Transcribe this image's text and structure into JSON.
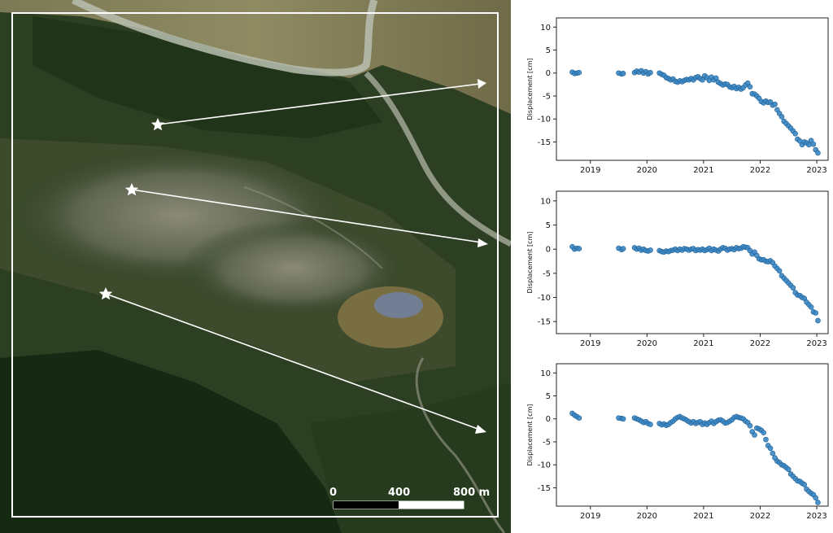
{
  "scale_bar": {
    "labels": [
      "0",
      "400",
      "800 m"
    ]
  },
  "colors": {
    "points": "#3b87c4",
    "point_edge": "#1f5f94",
    "frame": "#ffffff",
    "arrows": "#ffffff"
  },
  "chart_data": [
    {
      "type": "scatter",
      "ylabel": "Displacement [cm]",
      "ylim": [
        -19,
        12
      ],
      "yticks": [
        10,
        5,
        0,
        -5,
        -10,
        -15
      ],
      "xlim": [
        2018.4,
        2023.2
      ],
      "xticks": [
        "2019",
        "2020",
        "2021",
        "2022",
        "2023"
      ],
      "grid": false,
      "series": [
        {
          "x": [
            2018.68,
            2018.72,
            2018.76,
            2018.8,
            2019.5,
            2019.55,
            2019.58,
            2019.78,
            2019.82,
            2019.86,
            2019.9,
            2019.94,
            2019.98,
            2020.02,
            2020.06,
            2020.22,
            2020.26,
            2020.3,
            2020.34,
            2020.38,
            2020.42,
            2020.46,
            2020.5,
            2020.54,
            2020.58,
            2020.62,
            2020.66,
            2020.7,
            2020.74,
            2020.78,
            2020.82,
            2020.86,
            2020.9,
            2020.94,
            2020.98,
            2021.02,
            2021.06,
            2021.1,
            2021.14,
            2021.18,
            2021.22,
            2021.26,
            2021.3,
            2021.34,
            2021.38,
            2021.42,
            2021.46,
            2021.5,
            2021.54,
            2021.58,
            2021.62,
            2021.66,
            2021.7,
            2021.74,
            2021.78,
            2021.82,
            2021.86,
            2021.9,
            2021.94,
            2021.98,
            2022.02,
            2022.06,
            2022.1,
            2022.14,
            2022.18,
            2022.22,
            2022.26,
            2022.3,
            2022.34,
            2022.38,
            2022.42,
            2022.46,
            2022.5,
            2022.54,
            2022.58,
            2022.62,
            2022.66,
            2022.7,
            2022.74,
            2022.78,
            2022.82,
            2022.86,
            2022.9,
            2022.94,
            2022.98,
            2023.02
          ],
          "y": [
            0.2,
            -0.1,
            0,
            0.1,
            0,
            -0.2,
            -0.1,
            0.1,
            0.4,
            0.2,
            0.5,
            0,
            0.3,
            -0.2,
            0.1,
            0,
            -0.3,
            -0.5,
            -1,
            -1.2,
            -1.5,
            -1.3,
            -1.8,
            -2,
            -1.7,
            -1.9,
            -1.6,
            -1.4,
            -1.5,
            -1.2,
            -1.5,
            -1,
            -0.8,
            -1.2,
            -1.5,
            -0.6,
            -1,
            -1.6,
            -0.9,
            -1.5,
            -1.1,
            -2,
            -2.3,
            -2.6,
            -2.4,
            -2.5,
            -3,
            -3.2,
            -2.9,
            -3.4,
            -3.1,
            -3.5,
            -3.2,
            -2.6,
            -2.2,
            -3,
            -4.5,
            -4.6,
            -5,
            -5.5,
            -6.2,
            -6.5,
            -6.1,
            -6.4,
            -6.3,
            -7,
            -6.8,
            -8,
            -8.8,
            -9.5,
            -10.5,
            -11,
            -11.5,
            -12,
            -12.6,
            -13.2,
            -14.4,
            -14.8,
            -15.6,
            -15,
            -15.2,
            -15.6,
            -14.7,
            -15.5,
            -16.7,
            -17.4
          ]
        }
      ]
    },
    {
      "type": "scatter",
      "ylabel": "Displacement [cm]",
      "ylim": [
        -17.5,
        12
      ],
      "yticks": [
        10,
        5,
        0,
        -5,
        -10,
        -15
      ],
      "xlim": [
        2018.4,
        2023.2
      ],
      "xticks": [
        "2019",
        "2020",
        "2021",
        "2022",
        "2023"
      ],
      "grid": false,
      "series": [
        {
          "x": [
            2018.68,
            2018.72,
            2018.76,
            2018.8,
            2019.5,
            2019.55,
            2019.58,
            2019.78,
            2019.82,
            2019.86,
            2019.9,
            2019.94,
            2019.98,
            2020.02,
            2020.06,
            2020.22,
            2020.26,
            2020.3,
            2020.34,
            2020.38,
            2020.42,
            2020.46,
            2020.5,
            2020.54,
            2020.58,
            2020.62,
            2020.66,
            2020.7,
            2020.74,
            2020.78,
            2020.82,
            2020.86,
            2020.9,
            2020.94,
            2020.98,
            2021.02,
            2021.06,
            2021.1,
            2021.14,
            2021.18,
            2021.22,
            2021.26,
            2021.3,
            2021.34,
            2021.38,
            2021.42,
            2021.46,
            2021.5,
            2021.54,
            2021.58,
            2021.62,
            2021.66,
            2021.7,
            2021.74,
            2021.78,
            2021.82,
            2021.86,
            2021.9,
            2021.94,
            2021.98,
            2022.02,
            2022.06,
            2022.1,
            2022.14,
            2022.18,
            2022.22,
            2022.26,
            2022.3,
            2022.34,
            2022.38,
            2022.42,
            2022.46,
            2022.5,
            2022.54,
            2022.58,
            2022.62,
            2022.66,
            2022.7,
            2022.74,
            2022.78,
            2022.82,
            2022.86,
            2022.9,
            2022.94,
            2022.98,
            2023.02
          ],
          "y": [
            0.5,
            0,
            0.2,
            0.1,
            0.2,
            -0.1,
            0.1,
            0.3,
            0,
            0.2,
            -0.2,
            0,
            -0.3,
            -0.4,
            -0.2,
            -0.3,
            -0.5,
            -0.6,
            -0.4,
            -0.5,
            -0.3,
            -0.2,
            0,
            -0.3,
            0,
            -0.2,
            0.1,
            0,
            -0.2,
            0,
            0.1,
            -0.3,
            -0.1,
            -0.2,
            0,
            -0.3,
            -0.1,
            0.2,
            -0.3,
            0,
            -0.2,
            -0.4,
            0,
            0.3,
            0.2,
            -0.2,
            0,
            0.1,
            -0.1,
            0.3,
            0.1,
            0.2,
            0.5,
            0.4,
            0.3,
            -0.3,
            -1,
            -0.6,
            -1.3,
            -2,
            -2.2,
            -2.2,
            -2.5,
            -2.6,
            -2.4,
            -2.8,
            -3.5,
            -4,
            -4.5,
            -5.5,
            -6,
            -6.5,
            -7,
            -7.5,
            -8,
            -9,
            -9.5,
            -9.6,
            -10,
            -10.2,
            -11,
            -11.5,
            -12,
            -13,
            -13.2,
            -14.8
          ]
        }
      ]
    },
    {
      "type": "scatter",
      "ylabel": "Displacement [cm]",
      "ylim": [
        -19,
        12
      ],
      "yticks": [
        10,
        5,
        0,
        -5,
        -10,
        -15
      ],
      "xlim": [
        2018.4,
        2023.2
      ],
      "xticks": [
        "2019",
        "2020",
        "2021",
        "2022",
        "2023"
      ],
      "grid": false,
      "series": [
        {
          "x": [
            2018.68,
            2018.72,
            2018.76,
            2018.8,
            2019.5,
            2019.55,
            2019.58,
            2019.78,
            2019.82,
            2019.86,
            2019.9,
            2019.94,
            2019.98,
            2020.02,
            2020.06,
            2020.22,
            2020.26,
            2020.3,
            2020.34,
            2020.38,
            2020.42,
            2020.46,
            2020.5,
            2020.54,
            2020.58,
            2020.62,
            2020.66,
            2020.7,
            2020.74,
            2020.78,
            2020.82,
            2020.86,
            2020.9,
            2020.94,
            2020.98,
            2021.02,
            2021.06,
            2021.1,
            2021.14,
            2021.18,
            2021.22,
            2021.26,
            2021.3,
            2021.34,
            2021.38,
            2021.42,
            2021.46,
            2021.5,
            2021.54,
            2021.58,
            2021.62,
            2021.66,
            2021.7,
            2021.74,
            2021.78,
            2021.82,
            2021.86,
            2021.9,
            2021.94,
            2021.98,
            2022.02,
            2022.06,
            2022.1,
            2022.14,
            2022.18,
            2022.22,
            2022.26,
            2022.3,
            2022.34,
            2022.38,
            2022.42,
            2022.46,
            2022.5,
            2022.54,
            2022.58,
            2022.62,
            2022.66,
            2022.7,
            2022.74,
            2022.78,
            2022.82,
            2022.86,
            2022.9,
            2022.94,
            2022.98,
            2023.02
          ],
          "y": [
            1.2,
            0.8,
            0.5,
            0.2,
            0.2,
            0.1,
            0,
            0.2,
            0,
            -0.2,
            -0.5,
            -0.8,
            -0.6,
            -1,
            -1.2,
            -1,
            -1.3,
            -1.1,
            -1.4,
            -1.2,
            -0.8,
            -0.5,
            0,
            0.3,
            0.5,
            0.2,
            0,
            -0.3,
            -0.6,
            -0.9,
            -0.6,
            -1,
            -0.8,
            -0.6,
            -1.2,
            -0.9,
            -1.2,
            -0.8,
            -0.5,
            -1,
            -0.6,
            -0.3,
            -0.2,
            -0.5,
            -0.9,
            -0.8,
            -0.5,
            -0.2,
            0.3,
            0.5,
            0.3,
            0.2,
            0,
            -0.5,
            -0.8,
            -1.5,
            -2.8,
            -3.5,
            -2,
            -2.2,
            -2.5,
            -3,
            -4.5,
            -5.8,
            -6.4,
            -7.5,
            -8.5,
            -9.2,
            -9.5,
            -10,
            -10.2,
            -10.6,
            -11,
            -12,
            -12.5,
            -13,
            -13.5,
            -13.6,
            -14,
            -14.3,
            -15.3,
            -15.8,
            -16.2,
            -16.5,
            -17.2,
            -18.2
          ]
        }
      ]
    }
  ]
}
